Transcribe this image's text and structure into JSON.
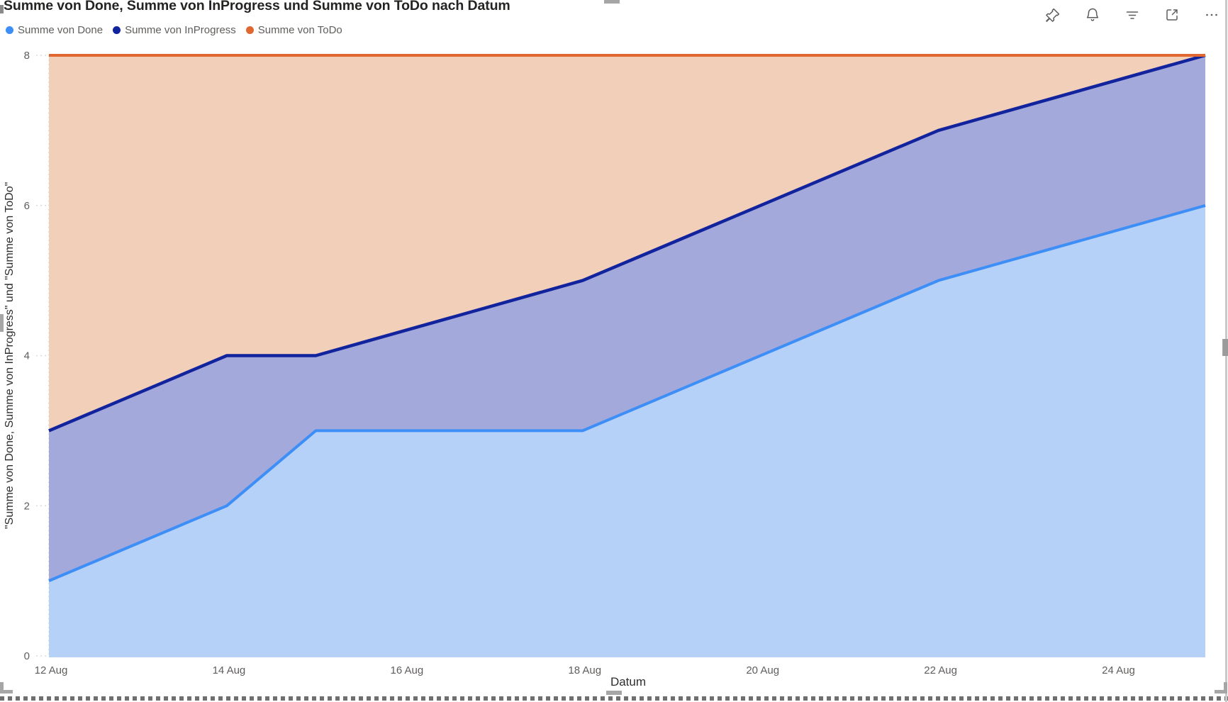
{
  "visual": {
    "title": "Summe von Done, Summe von InProgress und Summe von ToDo nach Datum"
  },
  "legend": {
    "position": "top-left",
    "items": [
      {
        "label": "Summe von Done",
        "color": "#3E8EF7"
      },
      {
        "label": "Summe von InProgress",
        "color": "#12239E"
      },
      {
        "label": "Summe von ToDo",
        "color": "#E0672F"
      }
    ]
  },
  "toolbar": {
    "icons": [
      "pin-icon",
      "bell-icon",
      "filter-icon",
      "focus-mode-icon",
      "more-options-icon"
    ]
  },
  "axes": {
    "x_title": "Datum",
    "y_title": "\"Summe von Done, Summe von InProgress\" und \"Summe von ToDo\""
  },
  "chart_data": {
    "type": "area",
    "stacked": true,
    "title": "Summe von Done, Summe von InProgress und Summe von ToDo nach Datum",
    "xlabel": "Datum",
    "ylabel": "\"Summe von Done, Summe von InProgress\" und \"Summe von ToDo\"",
    "ylim": [
      0,
      8
    ],
    "y_ticks": [
      0,
      2,
      4,
      6,
      8
    ],
    "x_range_days": [
      12,
      25
    ],
    "x_ticks": [
      {
        "day": 12,
        "label": "12 Aug"
      },
      {
        "day": 14,
        "label": "14 Aug"
      },
      {
        "day": 16,
        "label": "16 Aug"
      },
      {
        "day": 18,
        "label": "18 Aug"
      },
      {
        "day": 20,
        "label": "20 Aug"
      },
      {
        "day": 22,
        "label": "22 Aug"
      },
      {
        "day": 24,
        "label": "24 Aug"
      }
    ],
    "grid": "dotted",
    "legend_position": "top-left",
    "series": [
      {
        "name": "Summe von Done",
        "role": "cumulative boundary: Done",
        "color": "#3E8EF7",
        "fill": "#B5D1F8",
        "points": [
          [
            12,
            1
          ],
          [
            14,
            2
          ],
          [
            15,
            3
          ],
          [
            18,
            3
          ],
          [
            22,
            5
          ],
          [
            25,
            6
          ]
        ]
      },
      {
        "name": "Summe von InProgress",
        "role": "cumulative boundary: Done + InProgress",
        "color": "#12239E",
        "fill": "#A3A9DA",
        "points": [
          [
            12,
            3
          ],
          [
            14,
            4
          ],
          [
            15,
            4
          ],
          [
            18,
            5
          ],
          [
            22,
            7
          ],
          [
            25,
            8
          ]
        ]
      },
      {
        "name": "Summe von ToDo",
        "role": "cumulative boundary: Done + InProgress + ToDo (total)",
        "color": "#E0672F",
        "fill": "#F2CFB9",
        "points": [
          [
            12,
            8
          ],
          [
            25,
            8
          ]
        ]
      }
    ],
    "underlying_values": {
      "dates_august": [
        12,
        14,
        15,
        18,
        22,
        25
      ],
      "Done": [
        1,
        2,
        3,
        3,
        5,
        6
      ],
      "InProgress": [
        2,
        2,
        1,
        2,
        2,
        2
      ],
      "ToDo": [
        5,
        4,
        4,
        3,
        1,
        0
      ],
      "total_constant": 8
    }
  }
}
